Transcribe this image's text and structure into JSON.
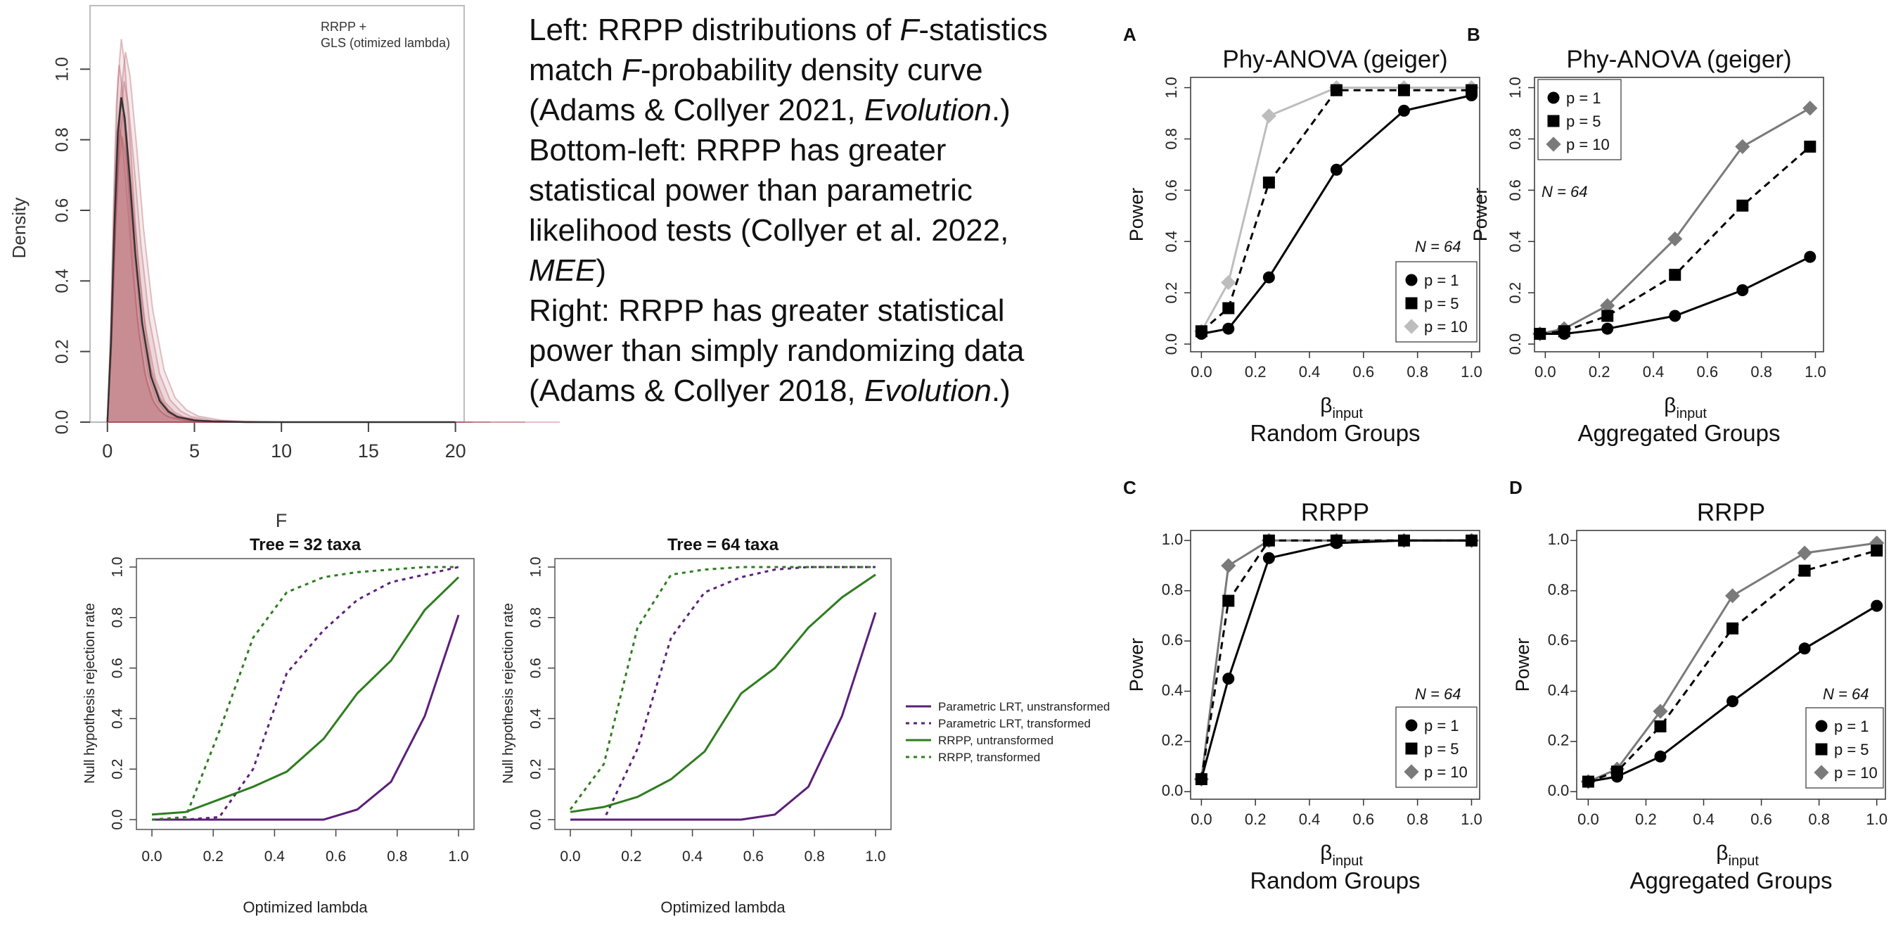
{
  "caption": {
    "lines": [
      [
        {
          "t": "Left: RRPP distributions of "
        },
        {
          "t": "F",
          "i": true
        },
        {
          "t": "-statistics"
        }
      ],
      [
        {
          "t": "match "
        },
        {
          "t": "F",
          "i": true
        },
        {
          "t": "-probability density curve"
        }
      ],
      [
        {
          "t": "(Adams & Collyer 2021, "
        },
        {
          "t": "Evolution",
          "i": true
        },
        {
          "t": ".)"
        }
      ],
      [
        {
          "t": "Bottom-left: RRPP has greater"
        }
      ],
      [
        {
          "t": "statistical power than parametric"
        }
      ],
      [
        {
          "t": "likelihood tests (Collyer et al. 2022,"
        }
      ],
      [
        {
          "t": "MEE",
          "i": true
        },
        {
          "t": ")"
        }
      ],
      [
        {
          "t": "Right: RRPP has greater statistical"
        }
      ],
      [
        {
          "t": "power than simply randomizing data"
        }
      ],
      [
        {
          "t": "(Adams & Collyer 2018, "
        },
        {
          "t": "Evolution",
          "i": true
        },
        {
          "t": ".)"
        }
      ]
    ]
  },
  "colors": {
    "lrt": "#5b1f7a",
    "rrpp": "#2e7d1f",
    "density": "#b0505e",
    "p10_gray": "#8c8c8c"
  },
  "chart_data": [
    {
      "id": "density",
      "type": "line",
      "title": "",
      "xlabel": "F",
      "ylabel": "Density",
      "legend_text": [
        "RRPP +",
        "GLS (otimized lambda)"
      ],
      "xlim": [
        -1,
        20.5
      ],
      "ylim": [
        0,
        1.18
      ],
      "xticks": [
        0,
        5,
        10,
        15,
        20
      ],
      "yticks": [
        0.0,
        0.2,
        0.4,
        0.6,
        0.8,
        1.0
      ],
      "x": [
        0,
        0.2,
        0.4,
        0.6,
        0.8,
        1.0,
        1.3,
        1.6,
        2.0,
        2.5,
        3.0,
        3.5,
        4.0,
        5.0,
        6.0,
        8.0,
        10.0,
        15.0,
        20.0
      ],
      "series": [
        {
          "values": [
            0.0,
            0.22,
            0.55,
            0.82,
            0.92,
            0.86,
            0.68,
            0.48,
            0.28,
            0.13,
            0.06,
            0.03,
            0.015,
            0.005,
            0.002,
            0.0,
            0.0,
            0.0,
            0.0
          ]
        }
      ]
    },
    {
      "id": "tree32",
      "type": "line",
      "title": "Tree =  32 taxa",
      "xlabel": "Optimized lambda",
      "ylabel": "Null hypothesis rejection rate",
      "xlim": [
        0,
        1
      ],
      "ylim": [
        0,
        1
      ],
      "xticks": [
        0.0,
        0.2,
        0.4,
        0.6,
        0.8,
        1.0
      ],
      "yticks": [
        0.0,
        0.2,
        0.4,
        0.6,
        0.8,
        1.0
      ],
      "x": [
        0,
        0.11,
        0.22,
        0.33,
        0.44,
        0.56,
        0.67,
        0.78,
        0.89,
        1.0
      ],
      "series": [
        {
          "name": "Parametric LRT, unstransformed",
          "values": [
            0.0,
            0.0,
            0.0,
            0.0,
            0.0,
            0.0,
            0.04,
            0.15,
            0.41,
            0.81
          ]
        },
        {
          "name": "Parametric LRT, transformed",
          "values": [
            0.0,
            0.0,
            0.01,
            0.2,
            0.58,
            0.75,
            0.87,
            0.94,
            0.97,
            1.0
          ]
        },
        {
          "name": "RRPP, untransformed",
          "values": [
            0.02,
            0.03,
            0.08,
            0.13,
            0.19,
            0.32,
            0.5,
            0.63,
            0.83,
            0.96
          ]
        },
        {
          "name": "RRPP, transformed",
          "values": [
            0.0,
            0.01,
            0.35,
            0.72,
            0.9,
            0.96,
            0.98,
            0.99,
            1.0,
            1.0
          ]
        }
      ]
    },
    {
      "id": "tree64",
      "type": "line",
      "title": "Tree =  64 taxa",
      "xlabel": "Optimized lambda",
      "ylabel": "Null hypothesis rejection rate",
      "xlim": [
        0,
        1
      ],
      "ylim": [
        0,
        1
      ],
      "xticks": [
        0.0,
        0.2,
        0.4,
        0.6,
        0.8,
        1.0
      ],
      "yticks": [
        0.0,
        0.2,
        0.4,
        0.6,
        0.8,
        1.0
      ],
      "x": [
        0,
        0.11,
        0.22,
        0.33,
        0.44,
        0.56,
        0.67,
        0.78,
        0.89,
        1.0
      ],
      "series": [
        {
          "name": "Parametric LRT, unstransformed",
          "values": [
            0.0,
            0.0,
            0.0,
            0.0,
            0.0,
            0.0,
            0.02,
            0.13,
            0.41,
            0.82
          ]
        },
        {
          "name": "Parametric LRT, transformed",
          "values": [
            0.0,
            0.0,
            0.28,
            0.72,
            0.9,
            0.96,
            0.99,
            1.0,
            1.0,
            1.0
          ]
        },
        {
          "name": "RRPP, untransformed",
          "values": [
            0.03,
            0.05,
            0.09,
            0.16,
            0.27,
            0.5,
            0.6,
            0.76,
            0.88,
            0.97
          ]
        },
        {
          "name": "RRPP, transformed",
          "values": [
            0.04,
            0.22,
            0.76,
            0.97,
            0.99,
            1.0,
            1.0,
            1.0,
            1.0,
            1.0
          ]
        }
      ]
    },
    {
      "id": "A",
      "type": "line",
      "panel_letter": "A",
      "title": "Phy-ANOVA (geiger)",
      "xlabel": "Random Groups",
      "xsymbol": "β",
      "xsub": "input",
      "ylabel": "Power",
      "n_label": "N = 64",
      "xlim": [
        -0.04,
        1.03
      ],
      "ylim": [
        -0.03,
        1.04
      ],
      "xticks": [
        0.0,
        0.2,
        0.4,
        0.6,
        0.8,
        1.0
      ],
      "yticks": [
        0.0,
        0.2,
        0.4,
        0.6,
        0.8,
        1.0
      ],
      "x": [
        0,
        0.1,
        0.25,
        0.5,
        0.75,
        1.0
      ],
      "series": [
        {
          "name": "p = 1",
          "values": [
            0.04,
            0.06,
            0.26,
            0.68,
            0.91,
            0.97
          ]
        },
        {
          "name": "p = 5",
          "values": [
            0.05,
            0.14,
            0.63,
            0.99,
            0.99,
            0.99
          ]
        },
        {
          "name": "p = 10",
          "values": [
            0.05,
            0.24,
            0.89,
            1.0,
            1.0,
            1.0
          ]
        }
      ]
    },
    {
      "id": "B",
      "type": "line",
      "panel_letter": "B",
      "title": "Phy-ANOVA (geiger)",
      "xlabel": "Aggregated Groups",
      "xsymbol": "β",
      "xsub": "input",
      "ylabel": "Power",
      "n_label": "N = 64",
      "xlim": [
        -0.04,
        1.03
      ],
      "ylim": [
        -0.03,
        1.04
      ],
      "xticks": [
        0.0,
        0.2,
        0.4,
        0.6,
        0.8,
        1.0
      ],
      "yticks": [
        0.0,
        0.2,
        0.4,
        0.6,
        0.8,
        1.0
      ],
      "x": [
        -0.02,
        0.07,
        0.23,
        0.48,
        0.73,
        0.98
      ],
      "series": [
        {
          "name": "p = 1",
          "values": [
            0.04,
            0.04,
            0.06,
            0.11,
            0.21,
            0.34
          ]
        },
        {
          "name": "p = 5",
          "values": [
            0.04,
            0.05,
            0.11,
            0.27,
            0.54,
            0.77
          ]
        },
        {
          "name": "p = 10",
          "values": [
            0.04,
            0.06,
            0.15,
            0.41,
            0.77,
            0.92
          ]
        }
      ]
    },
    {
      "id": "C",
      "type": "line",
      "panel_letter": "C",
      "title": "RRPP",
      "xlabel": "Random Groups",
      "xsymbol": "β",
      "xsub": "input",
      "ylabel": "Power",
      "n_label": "N = 64",
      "xlim": [
        -0.04,
        1.03
      ],
      "ylim": [
        -0.03,
        1.04
      ],
      "xticks": [
        0.0,
        0.2,
        0.4,
        0.6,
        0.8,
        1.0
      ],
      "yticks": [
        0.0,
        0.2,
        0.4,
        0.6,
        0.8,
        1.0
      ],
      "x": [
        0,
        0.1,
        0.25,
        0.5,
        0.75,
        1.0
      ],
      "series": [
        {
          "name": "p = 1",
          "values": [
            0.05,
            0.45,
            0.93,
            0.99,
            1.0,
            1.0
          ]
        },
        {
          "name": "p = 5",
          "values": [
            0.05,
            0.76,
            1.0,
            1.0,
            1.0,
            1.0
          ]
        },
        {
          "name": "p = 10",
          "values": [
            0.05,
            0.9,
            1.0,
            1.0,
            1.0,
            1.0
          ]
        }
      ]
    },
    {
      "id": "D",
      "type": "line",
      "panel_letter": "D",
      "title": "RRPP",
      "xlabel": "Aggregated Groups",
      "xsymbol": "β",
      "xsub": "input",
      "ylabel": "Power",
      "n_label": "N = 64",
      "xlim": [
        -0.04,
        1.03
      ],
      "ylim": [
        -0.03,
        1.04
      ],
      "xticks": [
        0.0,
        0.2,
        0.4,
        0.6,
        0.8,
        1.0
      ],
      "yticks": [
        0.0,
        0.2,
        0.4,
        0.6,
        0.8,
        1.0
      ],
      "x": [
        0,
        0.1,
        0.25,
        0.5,
        0.75,
        1.0
      ],
      "series": [
        {
          "name": "p = 1",
          "values": [
            0.04,
            0.06,
            0.14,
            0.36,
            0.57,
            0.74
          ]
        },
        {
          "name": "p = 5",
          "values": [
            0.04,
            0.08,
            0.26,
            0.65,
            0.88,
            0.96
          ]
        },
        {
          "name": "p = 10",
          "values": [
            0.04,
            0.09,
            0.32,
            0.78,
            0.95,
            0.99
          ]
        }
      ]
    }
  ]
}
